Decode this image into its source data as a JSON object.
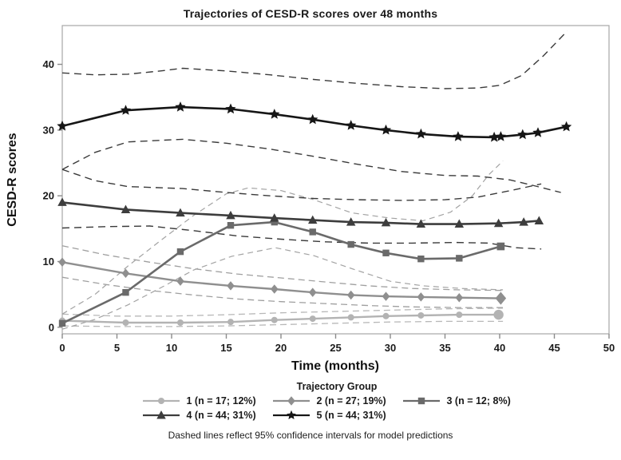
{
  "chart_data": {
    "type": "line",
    "title": "Trajectories of CESD-R scores over 48 months",
    "xlabel": "Time (months)",
    "ylabel": "CESD-R scores",
    "xlim": [
      0,
      50
    ],
    "ylim": [
      -1.0,
      45.9
    ],
    "xticks": [
      0,
      5,
      10,
      15,
      20,
      25,
      30,
      35,
      40,
      45,
      50
    ],
    "yticks": [
      0,
      10,
      20,
      30,
      40
    ],
    "grid": false,
    "frame_color": "#a6a6a6",
    "tick_color": "#8a8a8a",
    "text_color": "#1a1a1a",
    "legend": {
      "title": "Trajectory Group",
      "position": "bottom",
      "rows": [
        [
          "g1",
          "g2",
          "g3"
        ],
        [
          "g4",
          "g5"
        ]
      ]
    },
    "footnote": "Dashed lines reflect 95% confidence intervals for model predictions",
    "series": [
      {
        "id": "g1",
        "label": "1 (n = 17; 12%)",
        "marker": "circle",
        "color": "#b3b3b3",
        "line_width": 2.4,
        "marker_size": 4.0,
        "last_marker_scale": 1.55,
        "x": [
          0,
          5.8,
          10.8,
          15.4,
          19.4,
          22.9,
          26.4,
          29.6,
          32.8,
          36.3,
          39.9
        ],
        "y": [
          1.0,
          0.7,
          0.7,
          0.8,
          1.1,
          1.3,
          1.5,
          1.7,
          1.8,
          1.9,
          1.9
        ]
      },
      {
        "id": "g2",
        "label": "2 (n = 27; 19%)",
        "marker": "diamond",
        "color": "#8f8f8f",
        "line_width": 2.4,
        "marker_size": 4.6,
        "last_marker_scale": 1.4,
        "x": [
          0,
          5.8,
          10.8,
          15.4,
          19.4,
          22.9,
          26.4,
          29.6,
          32.8,
          36.3,
          40.1
        ],
        "y": [
          9.9,
          8.2,
          7.0,
          6.3,
          5.8,
          5.3,
          4.9,
          4.7,
          4.6,
          4.5,
          4.4
        ]
      },
      {
        "id": "g3",
        "label": "3 (n = 12; 8%)",
        "marker": "square",
        "color": "#6a6a6a",
        "line_width": 2.6,
        "marker_size": 4.2,
        "last_marker_scale": 1.15,
        "x": [
          0,
          5.8,
          10.8,
          15.4,
          19.4,
          22.9,
          26.4,
          29.6,
          32.8,
          36.3,
          40.1
        ],
        "y": [
          0.6,
          5.3,
          11.5,
          15.5,
          16.0,
          14.5,
          12.6,
          11.3,
          10.4,
          10.5,
          12.3
        ]
      },
      {
        "id": "g4",
        "label": "4 (n = 44; 31%)",
        "marker": "triangle",
        "color": "#3d3d3d",
        "line_width": 2.6,
        "marker_size": 5.0,
        "last_marker_scale": 1.0,
        "x": [
          0,
          5.8,
          10.8,
          15.4,
          19.4,
          22.9,
          26.4,
          29.6,
          32.8,
          36.3,
          39.9,
          42.2,
          43.6
        ],
        "y": [
          19.0,
          17.9,
          17.4,
          17.0,
          16.6,
          16.3,
          16.0,
          15.9,
          15.7,
          15.7,
          15.8,
          16.0,
          16.2
        ]
      },
      {
        "id": "g5",
        "label": "5 (n = 44; 31%)",
        "marker": "star",
        "color": "#161616",
        "line_width": 2.6,
        "marker_size": 7.0,
        "last_marker_scale": 1.0,
        "x": [
          0,
          5.8,
          10.8,
          15.4,
          19.4,
          22.9,
          26.4,
          29.6,
          32.8,
          36.2,
          39.5,
          40.1,
          42.1,
          43.5,
          46.1
        ],
        "y": [
          30.6,
          33.0,
          33.5,
          33.2,
          32.4,
          31.6,
          30.7,
          30.0,
          29.4,
          29.0,
          28.9,
          29.0,
          29.3,
          29.6,
          30.5
        ]
      }
    ],
    "confidence_intervals": [
      {
        "group": "1",
        "bound": "lower",
        "color": "#b8b8b8",
        "width": 1.3,
        "dash": "8 5",
        "x": [
          0,
          5,
          10,
          15,
          20,
          25,
          30,
          35,
          40.3
        ],
        "y": [
          0.2,
          0.1,
          0.1,
          0.2,
          0.4,
          0.6,
          0.8,
          0.9,
          0.9
        ]
      },
      {
        "group": "1",
        "bound": "upper",
        "color": "#b8b8b8",
        "width": 1.3,
        "dash": "8 5",
        "x": [
          0,
          5,
          10,
          15,
          20,
          25,
          30,
          35,
          40.3
        ],
        "y": [
          2.0,
          1.7,
          1.7,
          1.9,
          2.2,
          2.4,
          2.6,
          2.8,
          2.9
        ]
      },
      {
        "group": "2",
        "bound": "lower",
        "color": "#9f9f9f",
        "width": 1.3,
        "dash": "8 5",
        "x": [
          0,
          4,
          8,
          12,
          16,
          20,
          24,
          28,
          32,
          36,
          40.3
        ],
        "y": [
          7.6,
          6.5,
          5.6,
          4.9,
          4.3,
          3.9,
          3.6,
          3.3,
          3.1,
          3.0,
          3.0
        ]
      },
      {
        "group": "2",
        "bound": "upper",
        "color": "#9f9f9f",
        "width": 1.3,
        "dash": "8 5",
        "x": [
          0,
          4,
          8,
          12,
          16,
          20,
          24,
          28,
          32,
          36,
          40.3
        ],
        "y": [
          12.4,
          11.0,
          9.9,
          8.9,
          8.1,
          7.5,
          6.9,
          6.3,
          5.9,
          5.7,
          5.6
        ]
      },
      {
        "group": "3",
        "bound": "lower",
        "color": "#a3a3a3",
        "width": 1.2,
        "dash": "7 5",
        "x": [
          0,
          3,
          6,
          9,
          12,
          15.5,
          19.5,
          23,
          26.5,
          30,
          33,
          36.5,
          40.3
        ],
        "y": [
          -0.3,
          1.2,
          3.4,
          6.0,
          8.7,
          10.8,
          12.1,
          10.9,
          8.9,
          7.0,
          6.3,
          5.9,
          5.7
        ]
      },
      {
        "group": "3",
        "bound": "upper",
        "color": "#a3a3a3",
        "width": 1.2,
        "dash": "7 5",
        "x": [
          0,
          3,
          6,
          9,
          12,
          15,
          17,
          20,
          23,
          26.5,
          30,
          33,
          35.5,
          37.5,
          39,
          40.3
        ],
        "y": [
          2.0,
          5.0,
          9.3,
          13.2,
          17.0,
          20.3,
          21.2,
          20.8,
          19.4,
          17.4,
          16.6,
          16.2,
          17.5,
          20.0,
          23.2,
          25.3
        ]
      },
      {
        "group": "4",
        "bound": "lower",
        "color": "#3a3a3a",
        "width": 1.4,
        "dash": "9 6",
        "x": [
          0,
          4,
          8,
          12,
          16,
          20,
          24,
          28,
          32,
          36,
          39,
          41.5,
          43.8
        ],
        "y": [
          15.1,
          15.3,
          15.4,
          14.7,
          13.9,
          13.4,
          13.0,
          12.8,
          12.8,
          12.9,
          12.8,
          12.1,
          11.9
        ]
      },
      {
        "group": "4",
        "bound": "upper",
        "color": "#3a3a3a",
        "width": 1.4,
        "dash": "9 6",
        "x": [
          0,
          3,
          6,
          11,
          15,
          19,
          23,
          27,
          31,
          35,
          38,
          41,
          43.8
        ],
        "y": [
          24.0,
          22.3,
          21.4,
          21.1,
          20.5,
          20.0,
          19.6,
          19.4,
          19.3,
          19.4,
          19.8,
          20.8,
          21.8
        ]
      },
      {
        "group": "5",
        "bound": "lower",
        "color": "#3a3a3a",
        "width": 1.4,
        "dash": "9 6",
        "x": [
          0,
          3,
          6,
          11,
          15,
          19,
          23,
          27,
          31,
          35,
          38,
          41,
          43,
          45.6
        ],
        "y": [
          24.0,
          26.6,
          28.2,
          28.6,
          28.0,
          27.1,
          26.0,
          24.8,
          23.7,
          23.1,
          23.0,
          22.4,
          21.6,
          20.5
        ]
      },
      {
        "group": "5",
        "bound": "upper",
        "color": "#3a3a3a",
        "width": 1.4,
        "dash": "9 6",
        "x": [
          0,
          3,
          6,
          9,
          11,
          15,
          19,
          23,
          27,
          31,
          35,
          38,
          40,
          42,
          44,
          46.2
        ],
        "y": [
          38.7,
          38.4,
          38.5,
          39.0,
          39.4,
          39.0,
          38.4,
          37.7,
          37.1,
          36.6,
          36.3,
          36.4,
          36.8,
          38.3,
          41.3,
          45.1
        ]
      }
    ]
  }
}
